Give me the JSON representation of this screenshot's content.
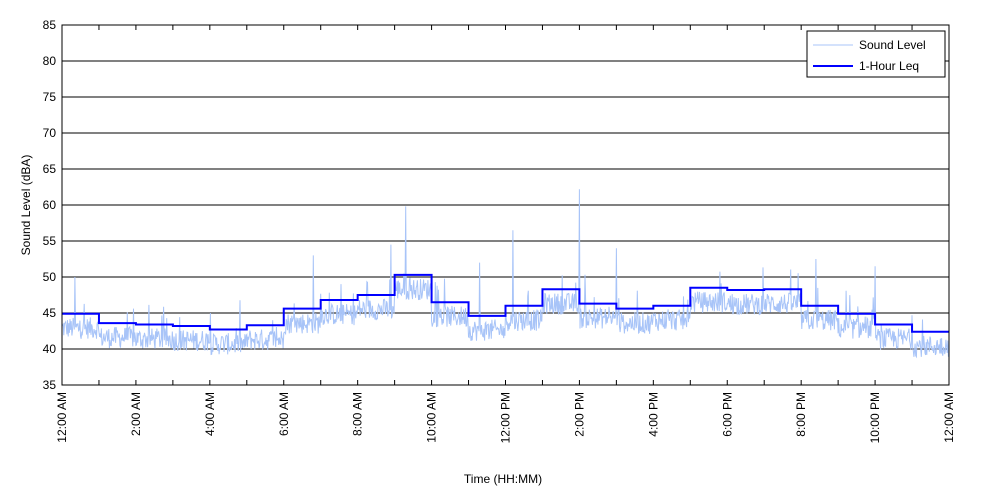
{
  "chart_data": {
    "type": "line",
    "title": "",
    "xlabel": "Time (HH:MM)",
    "ylabel": "Sound Level (dBA)",
    "ylim": [
      35,
      85
    ],
    "yticks": [
      35,
      40,
      45,
      50,
      55,
      60,
      65,
      70,
      75,
      80,
      85
    ],
    "xlim_hours": [
      0,
      24
    ],
    "xtick_labels": [
      "12:00 AM",
      "2:00 AM",
      "4:00 AM",
      "6:00 AM",
      "8:00 AM",
      "10:00 AM",
      "12:00 PM",
      "2:00 PM",
      "4:00 PM",
      "6:00 PM",
      "8:00 PM",
      "10:00 PM",
      "12:00 AM"
    ],
    "grid": "horizontal",
    "legend": {
      "placement": "top-right",
      "entries": [
        "Sound Level",
        "1-Hour Leq"
      ]
    },
    "series": [
      {
        "name": "1-Hour Leq",
        "color": "#0000ff",
        "step": true,
        "hours": [
          0,
          1,
          2,
          3,
          4,
          5,
          6,
          7,
          8,
          9,
          10,
          11,
          12,
          13,
          14,
          15,
          16,
          17,
          18,
          19,
          20,
          21,
          22,
          23
        ],
        "values": [
          44.9,
          43.6,
          43.4,
          43.2,
          42.7,
          43.3,
          45.6,
          46.8,
          47.5,
          50.3,
          46.5,
          44.6,
          46.0,
          48.3,
          46.3,
          45.6,
          46.0,
          48.5,
          48.2,
          48.3,
          46.0,
          44.9,
          43.4,
          42.4
        ]
      },
      {
        "name": "Sound Level",
        "color": "#a8c4f8",
        "note_peaks_hours": [
          0.35,
          6.8,
          8.9,
          9.3,
          11.3,
          12.2,
          14.0,
          15.0,
          20.4,
          22.0
        ],
        "peak_values": [
          50.0,
          53.0,
          54.5,
          59.8,
          52.0,
          56.5,
          62.2,
          54.0,
          52.5,
          51.5
        ]
      }
    ]
  }
}
